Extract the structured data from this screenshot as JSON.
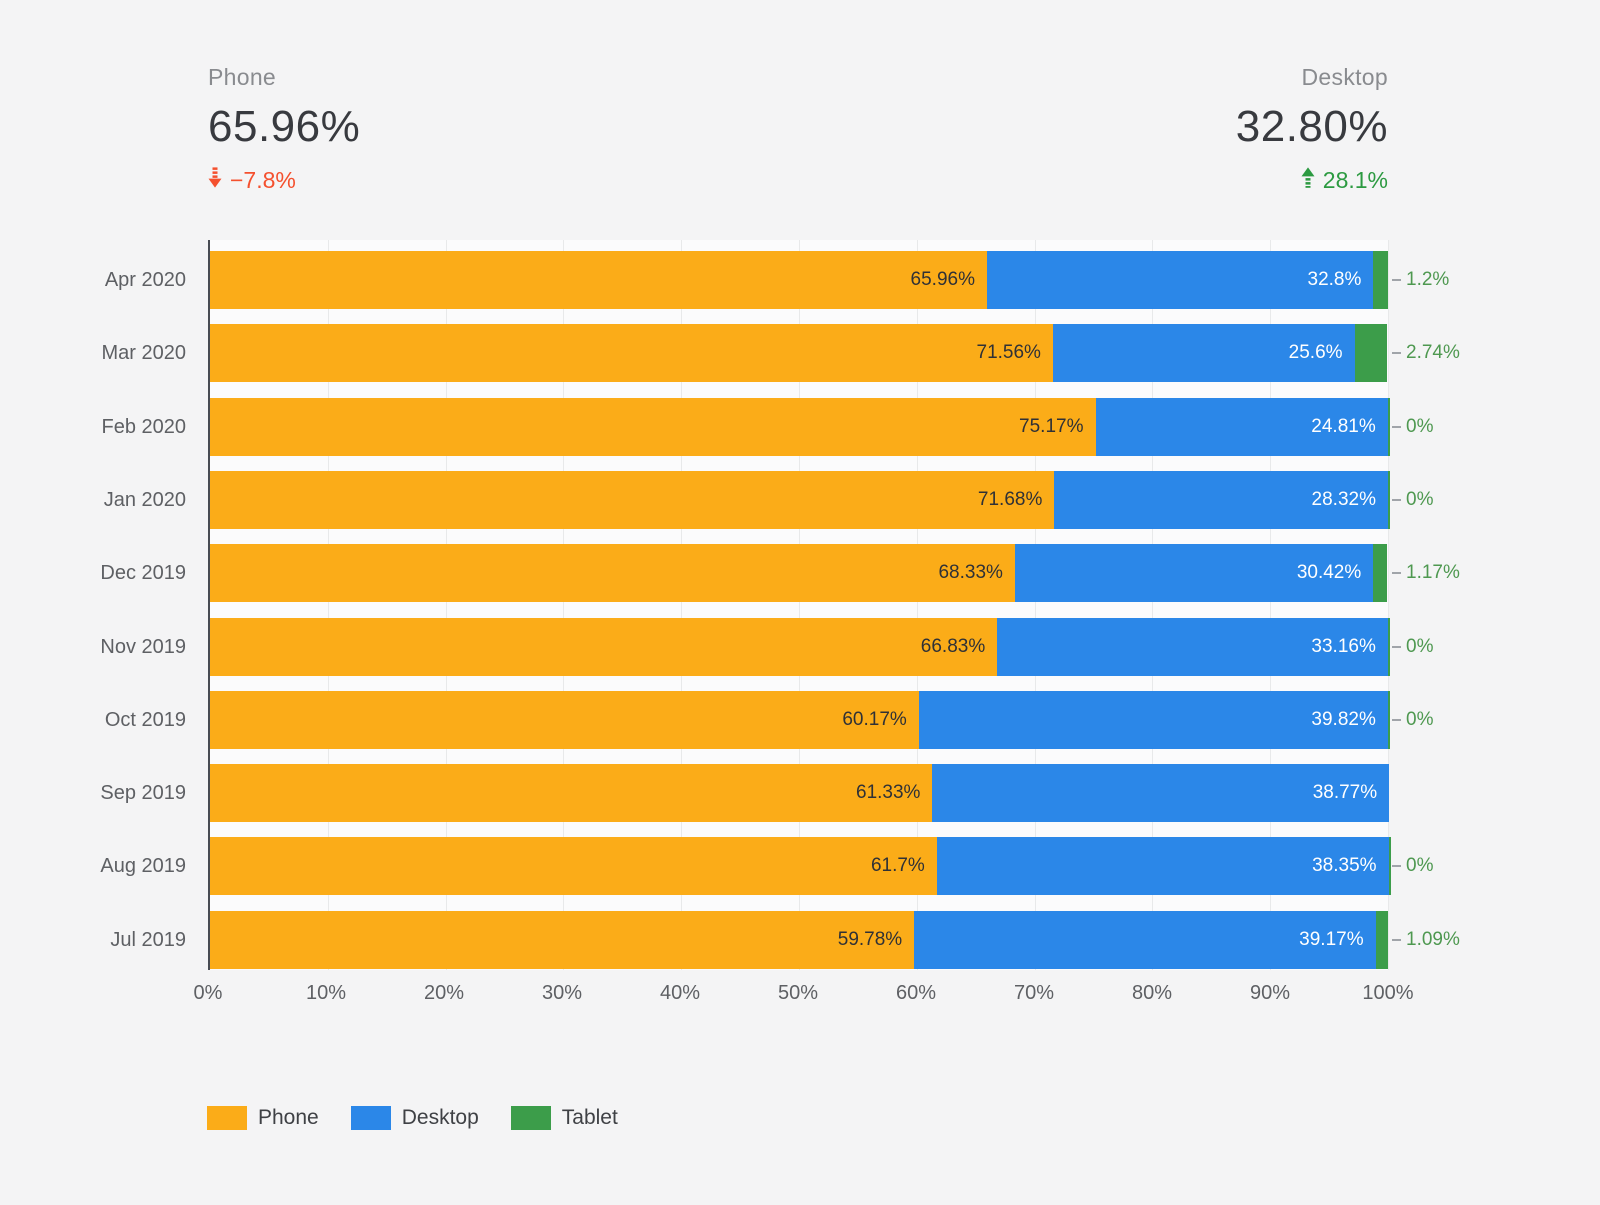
{
  "scorecards": {
    "phone": {
      "label": "Phone",
      "value": "65.96%",
      "delta": "−7.8%",
      "trend": "down"
    },
    "desktop": {
      "label": "Desktop",
      "value": "32.80%",
      "delta": "28.1%",
      "trend": "up"
    }
  },
  "colors": {
    "phone_bar": "#fbac18",
    "desktop_bar": "#2b87e8",
    "tablet_bar": "#3c9d4a",
    "delta_down": "#f4502e",
    "delta_up": "#2c9a41",
    "tablet_label_text": "#4e9850"
  },
  "chart_data": {
    "type": "bar",
    "orientation": "horizontal",
    "stacked": true,
    "title": "",
    "xlabel": "",
    "ylabel": "",
    "xlim": [
      0,
      100
    ],
    "grid": true,
    "legend_position": "bottom-left",
    "x_ticks": [
      "0%",
      "10%",
      "20%",
      "30%",
      "40%",
      "50%",
      "60%",
      "70%",
      "80%",
      "90%",
      "100%"
    ],
    "categories": [
      "Apr 2020",
      "Mar 2020",
      "Feb 2020",
      "Jan 2020",
      "Dec 2019",
      "Nov 2019",
      "Oct 2019",
      "Sep 2019",
      "Aug 2019",
      "Jul 2019"
    ],
    "series": [
      {
        "name": "Phone",
        "values": [
          65.96,
          71.56,
          75.17,
          71.68,
          68.33,
          66.83,
          60.17,
          61.33,
          61.7,
          59.78
        ],
        "labels": [
          "65.96%",
          "71.56%",
          "75.17%",
          "71.68%",
          "68.33%",
          "66.83%",
          "60.17%",
          "61.33%",
          "61.7%",
          "59.78%"
        ]
      },
      {
        "name": "Desktop",
        "values": [
          32.8,
          25.6,
          24.81,
          28.32,
          30.42,
          33.16,
          39.82,
          38.77,
          38.35,
          39.17
        ],
        "labels": [
          "32.8%",
          "25.6%",
          "24.81%",
          "28.32%",
          "30.42%",
          "33.16%",
          "39.82%",
          "38.77%",
          "38.35%",
          "39.17%"
        ]
      },
      {
        "name": "Tablet",
        "values": [
          1.2,
          2.74,
          0,
          0,
          1.17,
          0,
          0,
          null,
          0,
          1.09
        ],
        "labels": [
          "1.2%",
          "2.74%",
          "0%",
          "0%",
          "1.17%",
          "0%",
          "0%",
          null,
          "0%",
          "1.09%"
        ]
      }
    ],
    "legend": [
      {
        "label": "Phone"
      },
      {
        "label": "Desktop"
      },
      {
        "label": "Tablet"
      }
    ]
  }
}
